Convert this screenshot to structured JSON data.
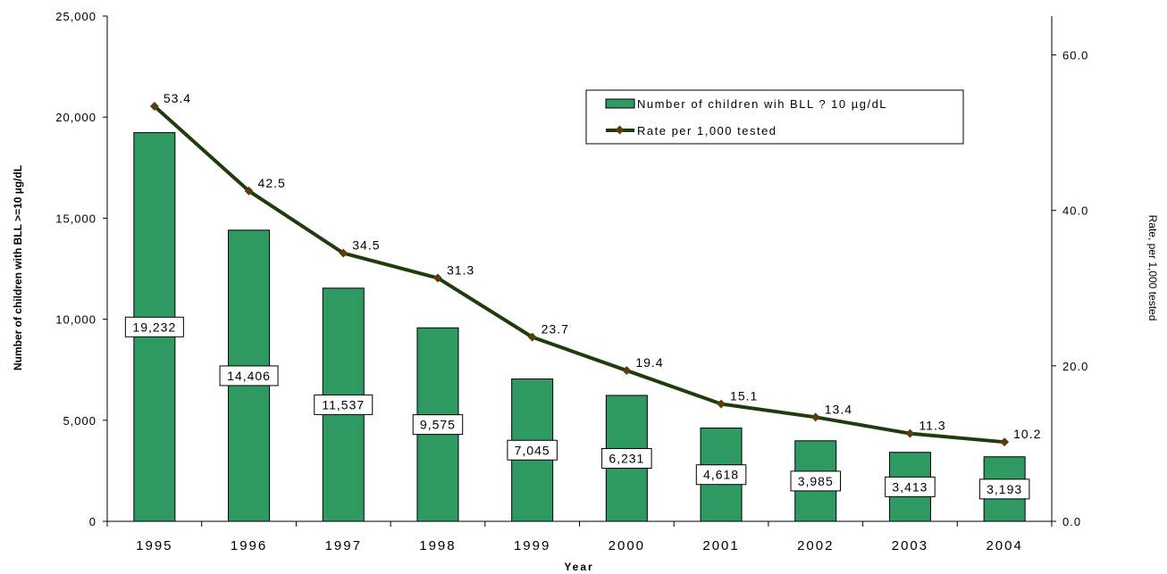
{
  "chart_data": {
    "type": "bar",
    "categories": [
      "1995",
      "1996",
      "1997",
      "1998",
      "1999",
      "2000",
      "2001",
      "2002",
      "2003",
      "2004"
    ],
    "series": [
      {
        "name": "Number of children wih BLL ? 10 µg/dL",
        "type": "bar",
        "axis": "left",
        "values": [
          19232,
          14406,
          11537,
          9575,
          7045,
          6231,
          4618,
          3985,
          3413,
          3193
        ],
        "labels": [
          "19,232",
          "14,406",
          "11,537",
          "9,575",
          "7,045",
          "6,231",
          "4,618",
          "3,985",
          "3,413",
          "3,193"
        ]
      },
      {
        "name": "Rate per 1,000 tested",
        "type": "line",
        "axis": "right",
        "values": [
          53.4,
          42.5,
          34.5,
          31.3,
          23.7,
          19.4,
          15.1,
          13.4,
          11.3,
          10.2
        ],
        "labels": [
          "53.4",
          "42.5",
          "34.5",
          "31.3",
          "23.7",
          "19.4",
          "15.1",
          "13.4",
          "11.3",
          "10.2"
        ]
      }
    ],
    "xlabel": "Year",
    "ylabel": "Number of children with BLL >=10 µg/dL",
    "y2label": "Rate, per 1,000 tested",
    "ylim": [
      0,
      25000
    ],
    "y2lim": [
      0,
      65
    ],
    "yticks": [
      "0",
      "5,000",
      "10,000",
      "15,000",
      "20,000",
      "25,000"
    ],
    "y2ticks": [
      "0.0",
      "20.0",
      "40.0",
      "60.0"
    ],
    "grid": false,
    "legend_position": "top-right",
    "colors": {
      "bar": "#2e9a62",
      "line": "#1f3d0c",
      "marker": "#5a3d0a"
    }
  }
}
